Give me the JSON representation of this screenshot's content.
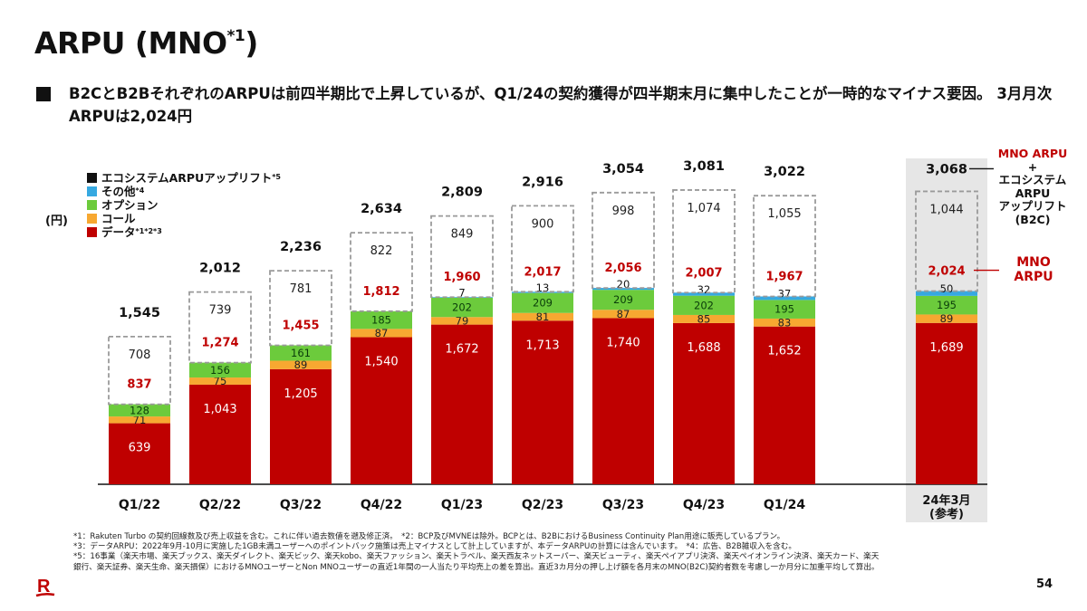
{
  "title": {
    "main": "ARPU (MNO",
    "sup": "*1",
    "close": ")"
  },
  "headline": "B2CとB2BそれぞれのARPUは前四半期比で上昇しているが、Q1/24の契約獲得が四半期末月に集中したことが一時的なマイナス要因。 3月月次ARPUは2,024円",
  "unit_label": "(円)",
  "legend": [
    {
      "label": "エコシステムARPUアップリフト",
      "sup": "*5",
      "color": "#111111"
    },
    {
      "label": "その他",
      "sup": "*4",
      "color": "#36a9e1"
    },
    {
      "label": "オプション",
      "sup": "",
      "color": "#6ccb3c"
    },
    {
      "label": "コール",
      "sup": "",
      "color": "#f7a831"
    },
    {
      "label": "データ",
      "sup": "*1*2*3",
      "color": "#bf0000"
    }
  ],
  "callouts": {
    "top_line1": "MNO ARPU",
    "top_line2": "+",
    "top_line3": "エコシステム",
    "top_line4": "ARPU",
    "top_line5": "アップリフト",
    "top_line6": "(B2C)",
    "mno_line1": "MNO",
    "mno_line2": "ARPU"
  },
  "chart_data": {
    "type": "bar",
    "stacked": true,
    "title": "ARPU (MNO*1)",
    "xlabel": "",
    "ylabel": "(円)",
    "categories": [
      "Q1/22",
      "Q2/22",
      "Q3/22",
      "Q4/22",
      "Q1/23",
      "Q2/23",
      "Q3/23",
      "Q4/23",
      "Q1/24",
      "24年3月 (参考)"
    ],
    "reference_category_index": 9,
    "series": [
      {
        "name": "データ",
        "color": "#bf0000",
        "values": [
          639,
          1043,
          1205,
          1540,
          1672,
          1713,
          1740,
          1688,
          1652,
          1689
        ]
      },
      {
        "name": "コール",
        "color": "#f7a831",
        "values": [
          71,
          75,
          89,
          87,
          79,
          81,
          87,
          85,
          83,
          89
        ]
      },
      {
        "name": "オプション",
        "color": "#6ccb3c",
        "values": [
          128,
          156,
          161,
          185,
          202,
          209,
          209,
          202,
          195,
          195
        ]
      },
      {
        "name": "その他",
        "color": "#36a9e1",
        "values": [
          null,
          null,
          null,
          null,
          7,
          13,
          20,
          32,
          37,
          50
        ]
      },
      {
        "name": "エコシステムARPUアップリフト",
        "color": "#111111",
        "style": "dashed-outline",
        "values": [
          708,
          739,
          781,
          822,
          849,
          900,
          998,
          1074,
          1055,
          1044
        ]
      }
    ],
    "mno_arpu": [
      837,
      1274,
      1455,
      1812,
      1960,
      2017,
      2056,
      2007,
      1967,
      2024
    ],
    "totals": [
      1545,
      2012,
      2236,
      2634,
      2809,
      2916,
      3054,
      3081,
      3022,
      3068
    ],
    "ylim": [
      0,
      3100
    ],
    "grid": false,
    "legend_position": "top-left"
  },
  "footnotes": [
    "*1：Rakuten Turbo の契約回線数及び売上収益を含む。これに伴い過去数値を遡及修正済。　*2：BCP及びMVNEは除外。BCPとは、B2BにおけるBusiness Continuity Plan用途に販売しているプラン。",
    "*3：データARPU：2022年9月-10月に実施した1GB未満ユーザーへのポイントバック施策は売上マイナスとして計上していますが、本データARPUの計算には含んでいます。　*4：広告、B2B雑収入を含む。",
    "*5：16事業（楽天市場、楽天ブックス、楽天ダイレクト、楽天ビック、楽天kobo、楽天ファッション、楽天トラベル、楽天西友ネットスーパー、楽天ビューティ、楽天ペイアプリ決済、楽天ペイオンライン決済、楽天カード、楽天",
    "銀行、楽天証券、楽天生命、楽天損保）におけるMNOユーザーとNon MNOユーザーの直近1年間の一人当たり平均売上の差を算出。直近3カ月分の押し上げ額を各月末のMNO(B2C)契約者数を考慮し一か月分に加重平均して算出。"
  ],
  "page_number": "54",
  "logo": "R"
}
